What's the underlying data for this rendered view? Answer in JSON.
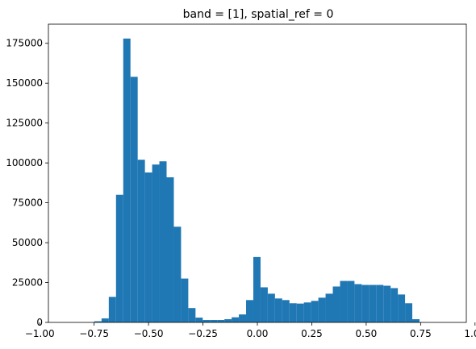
{
  "chart_data": {
    "type": "bar",
    "title": "band = [1], spatial_ref = 0",
    "xlabel": "",
    "ylabel": "",
    "xlim": [
      -0.96,
      0.96
    ],
    "ylim": [
      0,
      187000
    ],
    "grid": false,
    "bar_color": "#1f77b4",
    "bin_start": -0.915,
    "bin_width": 0.0332,
    "values": [
      0,
      0,
      0,
      0,
      0,
      700,
      2500,
      16000,
      80000,
      178000,
      154000,
      102000,
      94000,
      99000,
      101000,
      91000,
      60000,
      27500,
      9000,
      3000,
      1500,
      1500,
      1500,
      2000,
      3200,
      5000,
      14000,
      41000,
      22000,
      18000,
      15000,
      14000,
      12000,
      11800,
      12500,
      13500,
      15500,
      18000,
      22500,
      26000,
      26000,
      24000,
      23500,
      23500,
      23500,
      23000,
      21500,
      17500,
      12000,
      2000
    ],
    "x_ticks": [
      -1.0,
      -0.75,
      -0.5,
      -0.25,
      0.0,
      0.25,
      0.5,
      0.75,
      1.0
    ],
    "x_tick_labels": [
      "−1.00",
      "−0.75",
      "−0.50",
      "−0.25",
      "0.00",
      "0.25",
      "0.50",
      "0.75",
      "1.00"
    ],
    "y_ticks": [
      0,
      25000,
      50000,
      75000,
      100000,
      125000,
      150000,
      175000
    ],
    "y_tick_labels": [
      "0",
      "25000",
      "50000",
      "75000",
      "100000",
      "125000",
      "150000",
      "175000"
    ]
  }
}
